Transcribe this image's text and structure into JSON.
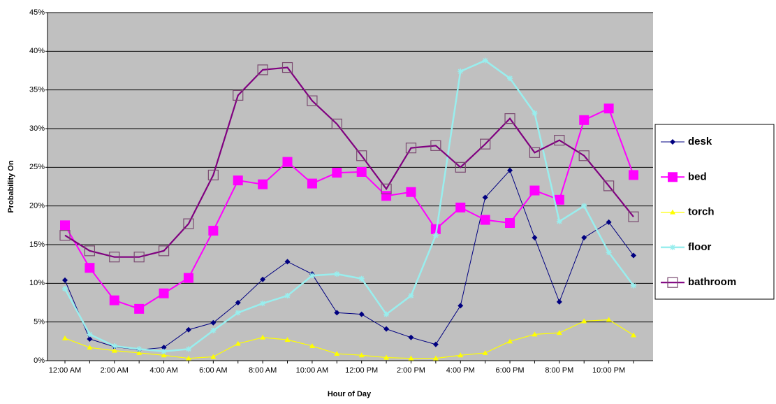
{
  "chart_data": {
    "type": "line",
    "y_label": "Probability On",
    "x_label": "Hour of Day",
    "categories": [
      "12:00 AM",
      null,
      "2:00 AM",
      null,
      "4:00 AM",
      null,
      "6:00 AM",
      null,
      "8:00 AM",
      null,
      "10:00 AM",
      null,
      "12:00 PM",
      null,
      "2:00 PM",
      null,
      "4:00 PM",
      null,
      "6:00 PM",
      null,
      "8:00 PM",
      null,
      "10:00 PM",
      null
    ],
    "ylim": [
      0,
      45
    ],
    "yticks": [
      {
        "value": 0,
        "label": "0%"
      },
      {
        "value": 5,
        "label": "5%"
      },
      {
        "value": 10,
        "label": "10%"
      },
      {
        "value": 15,
        "label": "15%"
      },
      {
        "value": 20,
        "label": "20%"
      },
      {
        "value": 25,
        "label": "25%"
      },
      {
        "value": 30,
        "label": "30%"
      },
      {
        "value": 35,
        "label": "35%"
      },
      {
        "value": 40,
        "label": "40%"
      },
      {
        "value": 45,
        "label": "45%"
      }
    ],
    "grid": true,
    "legend": "right",
    "series": [
      {
        "name": "desk",
        "color": "#000080",
        "marker": "diamond",
        "values": [
          10.4,
          2.8,
          1.8,
          1.4,
          1.7,
          4.0,
          4.9,
          7.5,
          10.5,
          12.8,
          11.2,
          6.2,
          6.0,
          4.1,
          3.0,
          2.1,
          7.1,
          21.1,
          24.6,
          15.9,
          7.6,
          15.9,
          17.9,
          13.6
        ]
      },
      {
        "name": "bed",
        "color": "#ff00ff",
        "marker": "square",
        "values": [
          17.5,
          12.0,
          7.8,
          6.7,
          8.7,
          10.7,
          16.8,
          23.3,
          22.8,
          25.7,
          22.9,
          24.3,
          24.4,
          21.3,
          21.8,
          17.0,
          19.8,
          18.2,
          17.8,
          22.0,
          20.8,
          31.1,
          32.6,
          24.0
        ]
      },
      {
        "name": "torch",
        "color": "#ffff00",
        "marker": "triangle",
        "values": [
          2.9,
          1.7,
          1.3,
          1.0,
          0.7,
          0.3,
          0.5,
          2.2,
          3.0,
          2.7,
          1.9,
          0.9,
          0.7,
          0.4,
          0.3,
          0.3,
          0.7,
          1.0,
          2.5,
          3.4,
          3.6,
          5.1,
          5.3,
          3.3
        ]
      },
      {
        "name": "floor",
        "color": "#99eeee",
        "marker": "star",
        "values": [
          9.3,
          3.4,
          1.9,
          1.5,
          1.2,
          1.5,
          3.9,
          6.2,
          7.4,
          8.4,
          11.0,
          11.2,
          10.6,
          6.0,
          8.4,
          16.2,
          37.4,
          38.8,
          36.5,
          32.0,
          18.0,
          20.0,
          14.0,
          9.7
        ]
      },
      {
        "name": "bathroom",
        "color": "#800080",
        "marker": "open-square",
        "values": [
          16.2,
          14.2,
          13.4,
          13.4,
          14.2,
          17.7,
          24.0,
          34.3,
          37.6,
          37.9,
          33.6,
          30.6,
          26.5,
          22.2,
          27.5,
          27.8,
          25.0,
          28.0,
          31.3,
          26.9,
          28.5,
          26.5,
          22.6,
          18.6
        ]
      }
    ]
  }
}
